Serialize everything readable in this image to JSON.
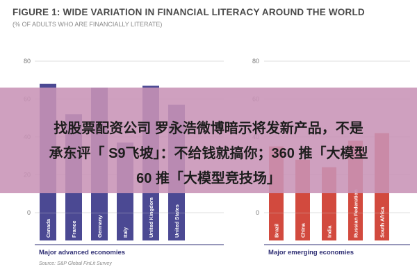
{
  "chart_data": [
    {
      "type": "bar",
      "title": "FIGURE 1: WIDE VARIATION IN FINANCIAL LITERACY AROUND THE WORLD",
      "subtitle": "(% OF ADULTS WHO ARE FINANCIALLY LITERATE)",
      "group_label": "Major advanced economies",
      "categories": [
        "Canada",
        "France",
        "Germany",
        "Italy",
        "United Kingdom",
        "United States"
      ],
      "values": [
        68,
        52,
        66,
        37,
        67,
        57
      ],
      "ylim": [
        0,
        80
      ],
      "yticks": [
        "80",
        "60",
        "40",
        "20",
        "0"
      ],
      "bar_color": "#4b4993"
    },
    {
      "type": "bar",
      "group_label": "Major emerging economies",
      "categories": [
        "Brazil",
        "China",
        "India",
        "Russian Federation",
        "South Africa"
      ],
      "values": [
        35,
        28,
        24,
        38,
        42
      ],
      "ylim": [
        0,
        80
      ],
      "yticks": [
        "80",
        "60",
        "40",
        "20",
        "0"
      ],
      "bar_color": "#d24a3e"
    }
  ],
  "source": "Source: S&P Global FinLit Survey",
  "banner": {
    "line1": "找股票配资公司 罗永浩微博暗示将发新产品，不是",
    "line2": "承东评「 S9飞坡」：不给钱就搞你；360 推「大模型",
    "line3": "60 推「大模型竞技场」"
  }
}
